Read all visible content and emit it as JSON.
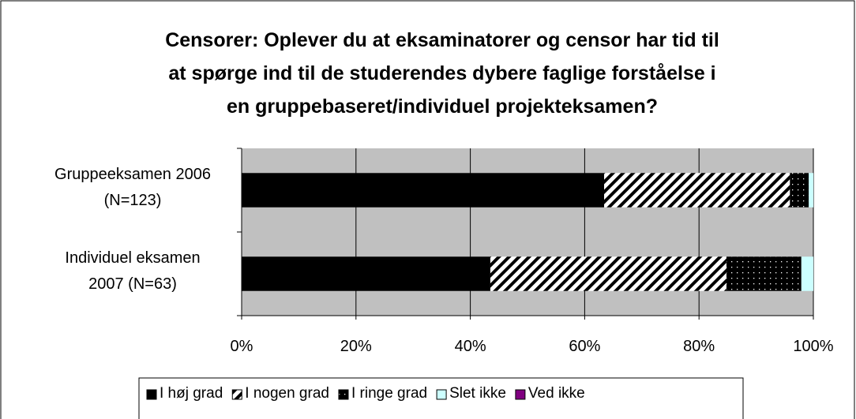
{
  "chart_data": {
    "type": "stacked-bar-horizontal",
    "title": "Censorer: Oplever du at eksaminatorer og censor har tid til\nat spørge ind til de studerendes dybere faglige forståelse i\nen gruppebaseret/individuel projekteksamen?",
    "categories": [
      "Gruppeeksamen 2006\n(N=123)",
      "Individuel eksamen\n2007 (N=63)"
    ],
    "series": [
      {
        "name": "I høj grad",
        "color": "#000000",
        "pattern": "solid",
        "values": [
          63.4,
          43.5
        ]
      },
      {
        "name": "I nogen grad",
        "color": "#000000",
        "pattern": "hatch",
        "values": [
          32.5,
          41.3
        ]
      },
      {
        "name": "I ringe grad",
        "color": "#000000",
        "pattern": "dots",
        "values": [
          3.3,
          13.1
        ]
      },
      {
        "name": "Slet ikke",
        "color": "#ccffff",
        "pattern": "solid",
        "values": [
          0.8,
          2.1
        ]
      },
      {
        "name": "Ved ikke",
        "color": "#800080",
        "pattern": "solid",
        "values": [
          0,
          0
        ]
      }
    ],
    "xlim": [
      0,
      100
    ],
    "xticks": [
      {
        "value": 0,
        "label": "0%"
      },
      {
        "value": 20,
        "label": "20%"
      },
      {
        "value": 40,
        "label": "40%"
      },
      {
        "value": 60,
        "label": "60%"
      },
      {
        "value": 80,
        "label": "80%"
      },
      {
        "value": 100,
        "label": "100%"
      }
    ],
    "grid": true,
    "legend": "bottom"
  }
}
